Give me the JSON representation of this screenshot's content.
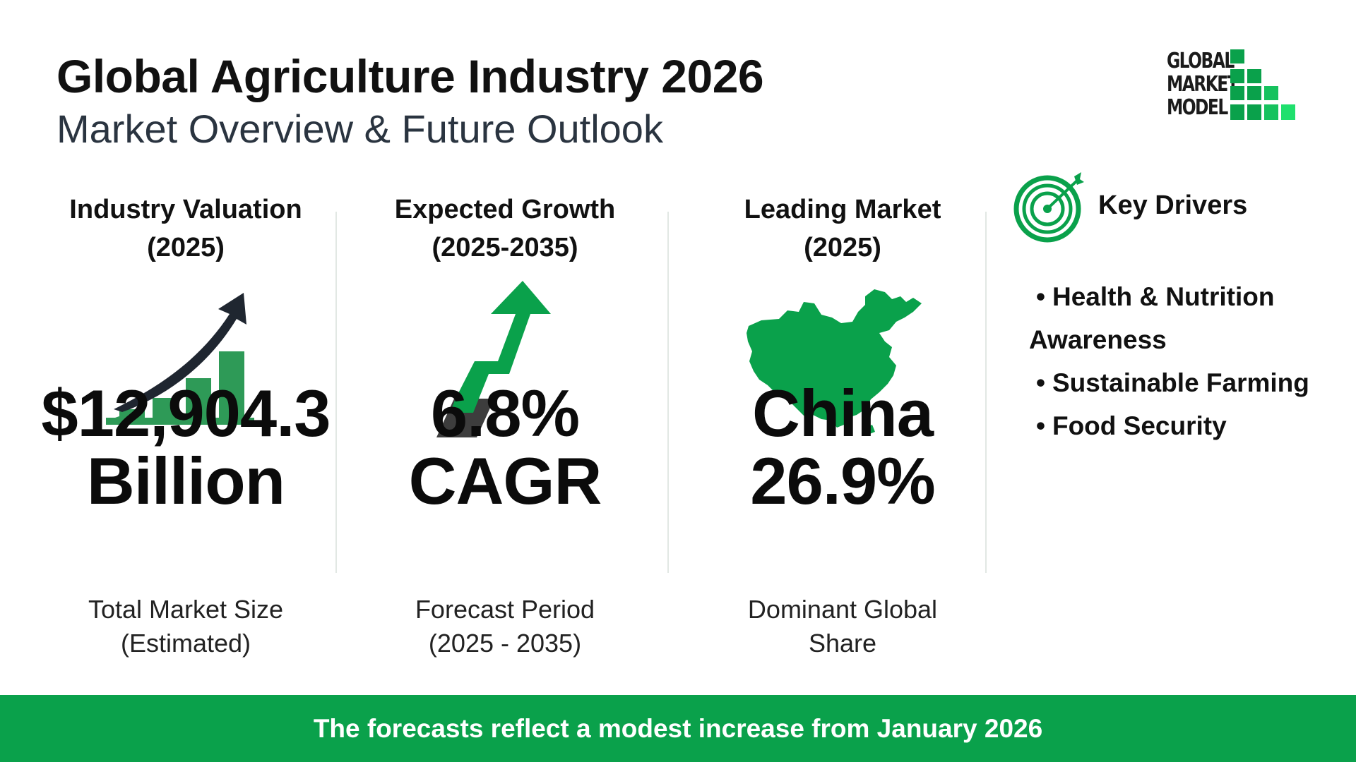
{
  "header": {
    "title": "Global Agriculture Industry 2026",
    "subtitle": "Market Overview & Future Outlook"
  },
  "logo": {
    "lines": [
      "GLOBAL",
      "MARKET",
      "MODEL"
    ],
    "accent": "#0aa14b"
  },
  "metrics": [
    {
      "heading_line1": "Industry Valuation",
      "heading_line2": "(2025)",
      "icon": "growth-bar-chart-icon",
      "value_line1": "$12,904.3",
      "value_line2": "Billion",
      "caption_line1": "Total Market Size",
      "caption_line2": "(Estimated)"
    },
    {
      "heading_line1": "Expected Growth",
      "heading_line2": "(2025-2035)",
      "icon": "up-arrow-icon",
      "value_line1": "6.8%",
      "value_line2": "CAGR",
      "caption_line1": "Forecast Period",
      "caption_line2": "(2025 - 2035)"
    },
    {
      "heading_line1": "Leading Market",
      "heading_line2": "(2025)",
      "icon": "china-map-icon",
      "value_line1": "China",
      "value_line2": "26.9%",
      "caption_line1": "Dominant Global",
      "caption_line2": "Share"
    }
  ],
  "drivers": {
    "heading": "Key Drivers",
    "icon": "target-icon",
    "bullet": "•",
    "items": [
      "Health & Nutrition",
      "Awareness",
      "Sustainable Farming",
      "Food Security"
    ]
  },
  "footer": {
    "text": "The forecasts reflect a modest increase from January 2026"
  },
  "colors": {
    "green": "#0aa14b",
    "dark_green": "#2e9a57",
    "dark": "#1f2630"
  }
}
